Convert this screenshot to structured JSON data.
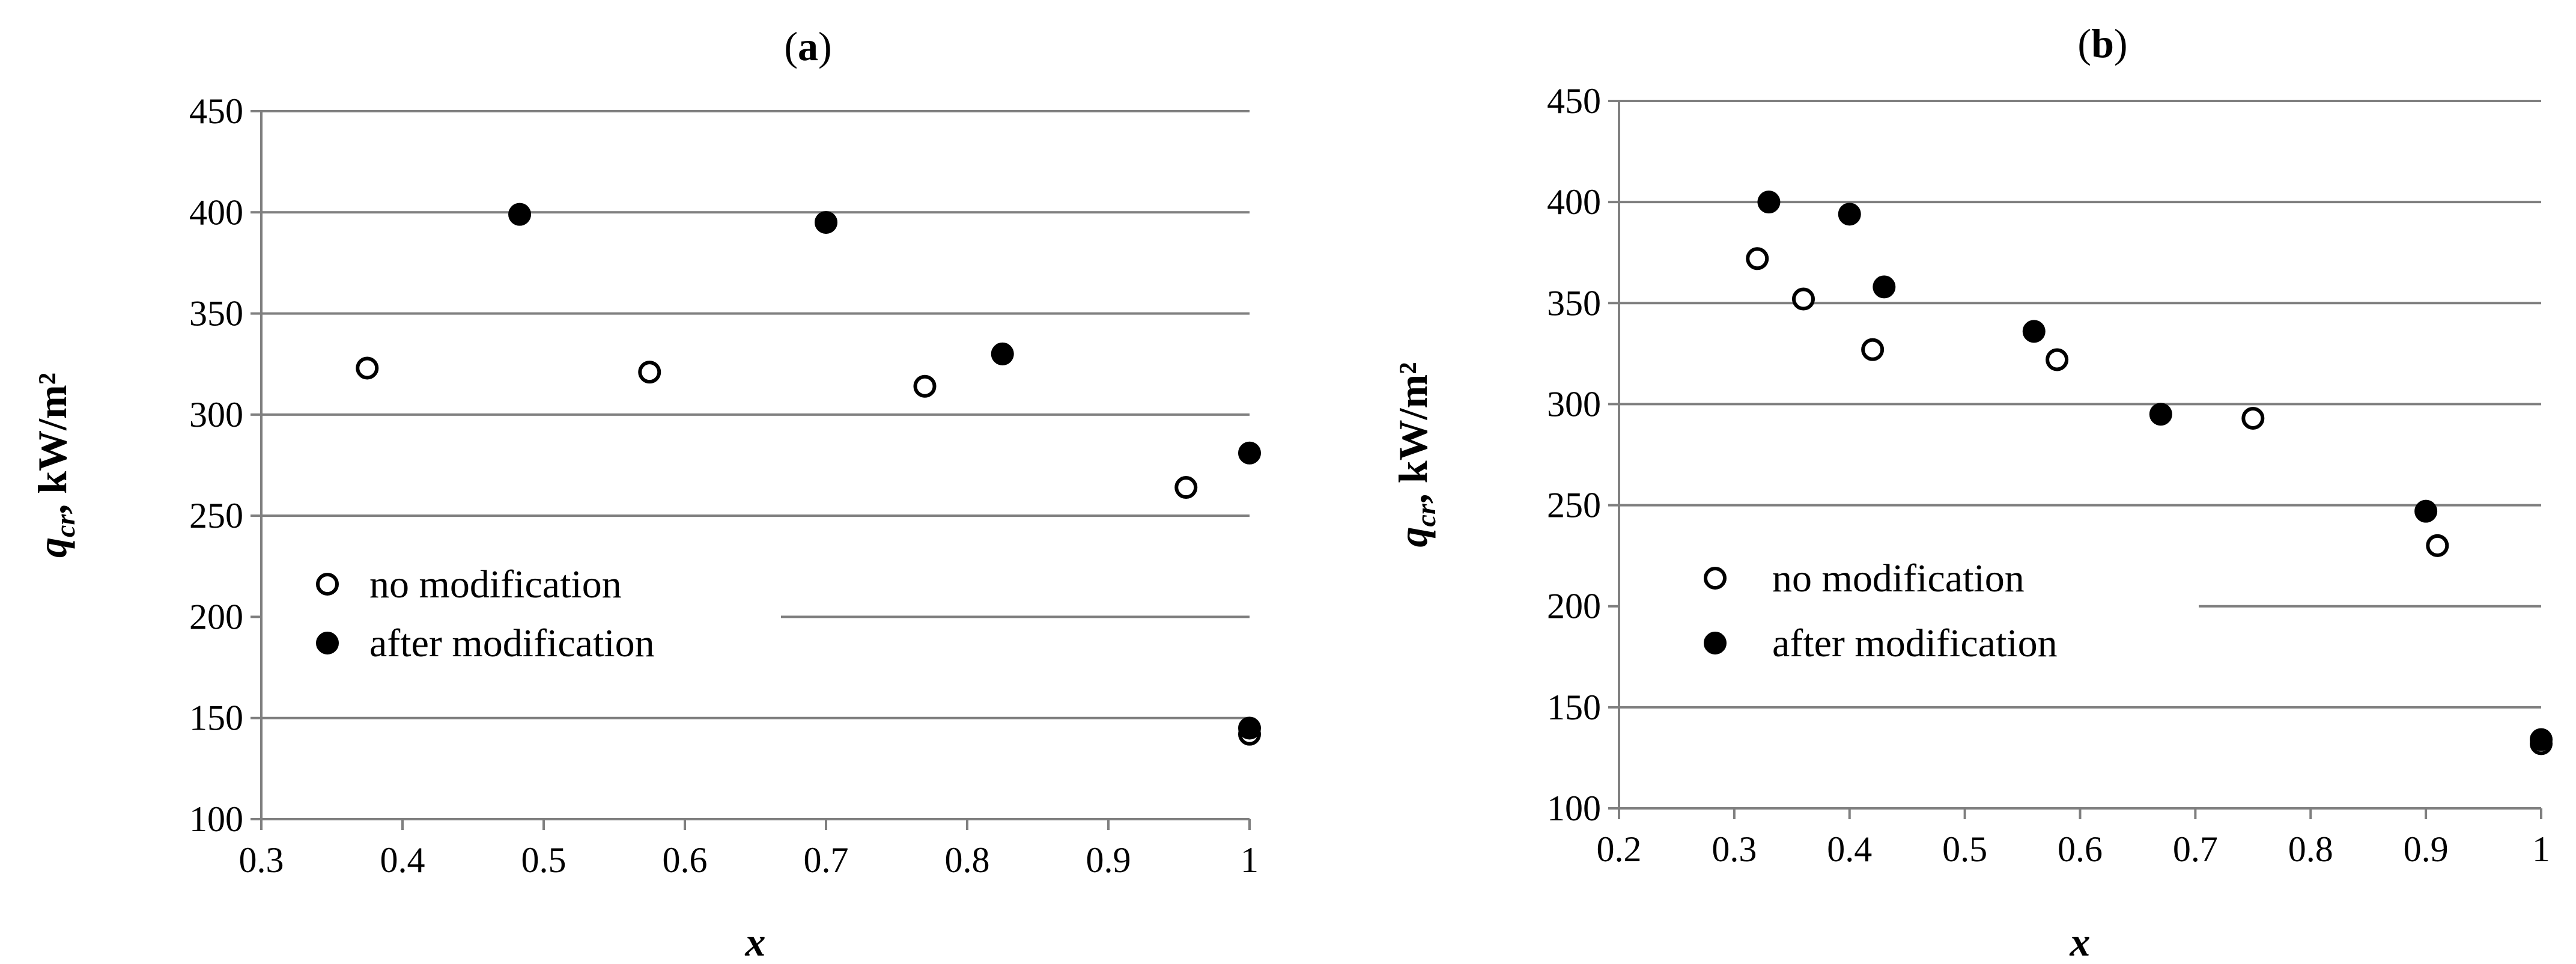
{
  "chart_data": [
    {
      "type": "scatter",
      "panel_label_prefix": "(",
      "panel_label_letter": "a",
      "panel_label_suffix": ")",
      "xlabel": "x",
      "ylabel_main": "q",
      "ylabel_sub": "cr",
      "ylabel_units": ", kW/m²",
      "xlim": [
        0.3,
        1.0
      ],
      "ylim": [
        100,
        450
      ],
      "xticks": [
        0.3,
        0.4,
        0.5,
        0.6,
        0.7,
        0.8,
        0.9,
        1.0
      ],
      "xtick_labels": [
        "0.3",
        "0.4",
        "0.5",
        "0.6",
        "0.7",
        "0.8",
        "0.9",
        "1"
      ],
      "yticks": [
        100,
        150,
        200,
        250,
        300,
        350,
        400,
        450
      ],
      "ytick_labels": [
        "100",
        "150",
        "200",
        "250",
        "300",
        "350",
        "400",
        "450"
      ],
      "grid": "horizontal",
      "legend_position": "lower-left",
      "series": [
        {
          "name": "no modification",
          "marker": "open-circle",
          "points": [
            [
              0.375,
              323
            ],
            [
              0.575,
              321
            ],
            [
              0.77,
              314
            ],
            [
              0.955,
              264
            ],
            [
              1.0,
              142
            ]
          ]
        },
        {
          "name": "after modification",
          "marker": "filled-circle",
          "points": [
            [
              0.483,
              399
            ],
            [
              0.7,
              395
            ],
            [
              0.825,
              330
            ],
            [
              1.0,
              281
            ],
            [
              1.0,
              145
            ]
          ]
        }
      ]
    },
    {
      "type": "scatter",
      "panel_label_prefix": "(",
      "panel_label_letter": "b",
      "panel_label_suffix": ")",
      "xlabel": "x",
      "ylabel_main": "q",
      "ylabel_sub": "cr",
      "ylabel_units": ", kW/m²",
      "xlim": [
        0.2,
        1.0
      ],
      "ylim": [
        100,
        450
      ],
      "xticks": [
        0.2,
        0.3,
        0.4,
        0.5,
        0.6,
        0.7,
        0.8,
        0.9,
        1.0
      ],
      "xtick_labels": [
        "0.2",
        "0.3",
        "0.4",
        "0.5",
        "0.6",
        "0.7",
        "0.8",
        "0.9",
        "1"
      ],
      "yticks": [
        100,
        150,
        200,
        250,
        300,
        350,
        400,
        450
      ],
      "ytick_labels": [
        "100",
        "150",
        "200",
        "250",
        "300",
        "350",
        "400",
        "450"
      ],
      "grid": "horizontal",
      "legend_position": "lower-left",
      "series": [
        {
          "name": "no modification",
          "marker": "open-circle",
          "points": [
            [
              0.32,
              372
            ],
            [
              0.36,
              352
            ],
            [
              0.42,
              327
            ],
            [
              0.58,
              322
            ],
            [
              0.75,
              293
            ],
            [
              0.91,
              230
            ],
            [
              1.0,
              132
            ]
          ]
        },
        {
          "name": "after modification",
          "marker": "filled-circle",
          "points": [
            [
              0.33,
              400
            ],
            [
              0.4,
              394
            ],
            [
              0.43,
              358
            ],
            [
              0.56,
              336
            ],
            [
              0.67,
              295
            ],
            [
              0.9,
              247
            ],
            [
              1.0,
              134
            ]
          ]
        }
      ]
    }
  ]
}
